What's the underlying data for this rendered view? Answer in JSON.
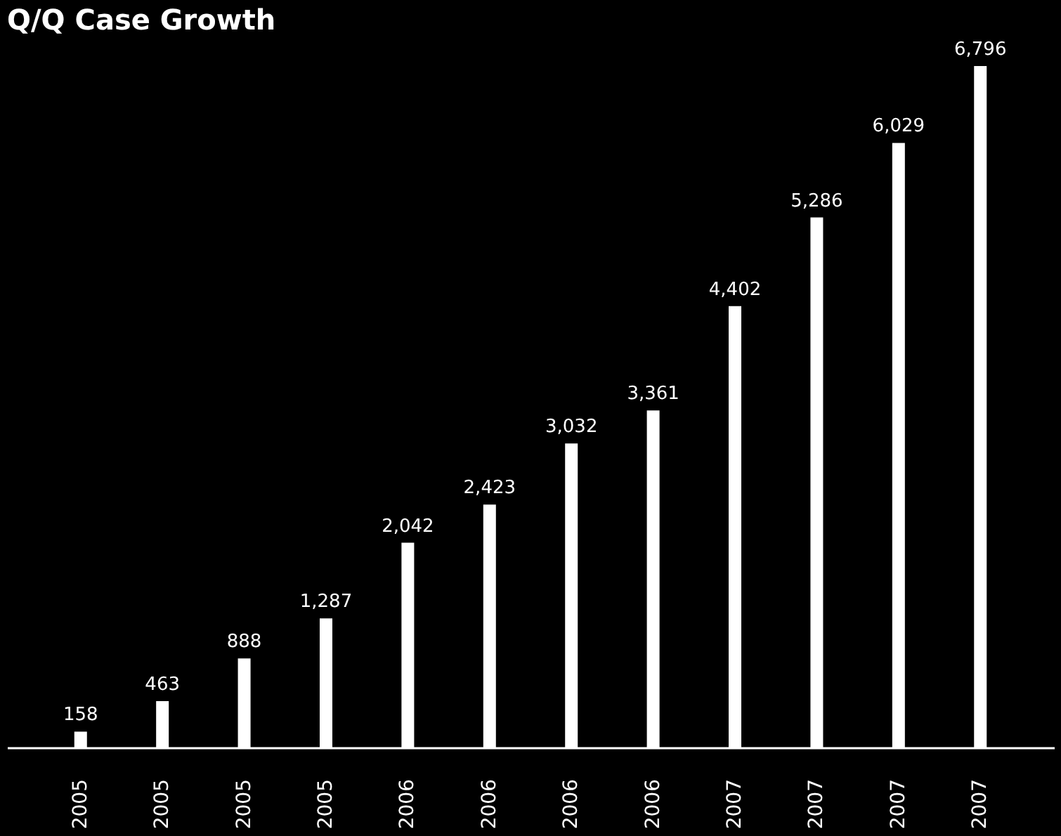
{
  "chart_data": {
    "type": "bar",
    "title": "Q/Q Case Growth",
    "categories": [
      "2005",
      "2005",
      "2005",
      "2005",
      "2006",
      "2006",
      "2006",
      "2006",
      "2007",
      "2007",
      "2007",
      "2007"
    ],
    "values": [
      158,
      463,
      888,
      1287,
      2042,
      2423,
      3032,
      3361,
      4402,
      5286,
      6029,
      6796
    ],
    "value_labels": [
      "158",
      "463",
      "888",
      "1,287",
      "2,042",
      "2,423",
      "3,032",
      "3,361",
      "4,402",
      "5,286",
      "6,029",
      "6,796"
    ],
    "color": "#ffffff"
  }
}
